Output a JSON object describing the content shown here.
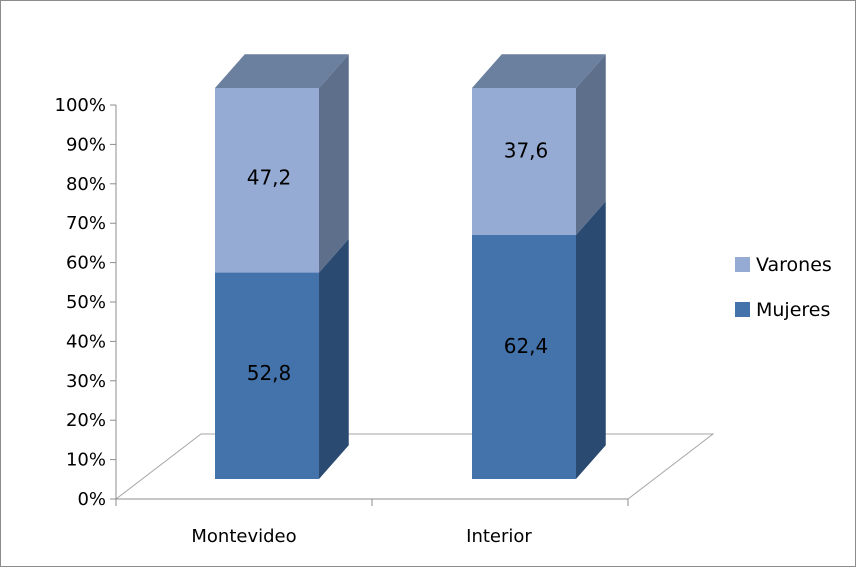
{
  "chart_data": {
    "type": "bar",
    "stacked": true,
    "three_d": true,
    "categories": [
      "Montevideo",
      "Interior"
    ],
    "series": [
      {
        "name": "Mujeres",
        "values": [
          52.8,
          62.4
        ],
        "labels": [
          "52,8",
          "62,4"
        ],
        "color": "#4472aa",
        "side_color": "#2b4a72",
        "top_color": "#3f628f"
      },
      {
        "name": "Varones",
        "values": [
          47.2,
          37.6
        ],
        "labels": [
          "47,2",
          "37,6"
        ],
        "color": "#95abd4",
        "side_color": "#5e6f8c",
        "top_color": "#6b7f9e"
      }
    ],
    "yticks": [
      "0%",
      "10%",
      "20%",
      "30%",
      "40%",
      "50%",
      "60%",
      "70%",
      "80%",
      "90%",
      "100%"
    ],
    "ylim": [
      0,
      100
    ],
    "legend": {
      "position": "right",
      "order": [
        "Varones",
        "Mujeres"
      ]
    },
    "grid": false
  }
}
